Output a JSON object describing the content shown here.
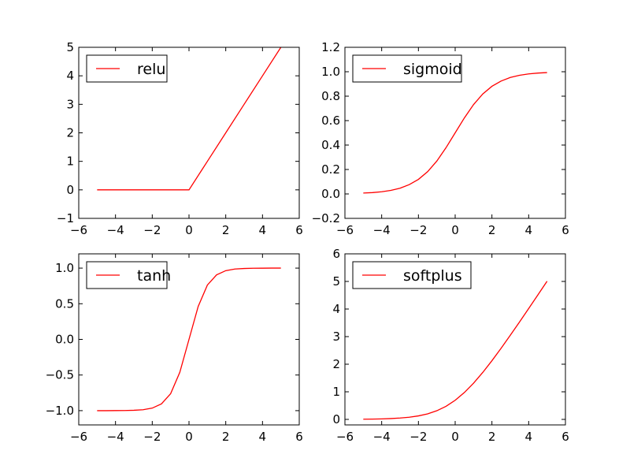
{
  "chart_data": [
    {
      "type": "line",
      "title": "",
      "xlabel": "",
      "ylabel": "",
      "xlim": [
        -6,
        6
      ],
      "ylim": [
        -1,
        5
      ],
      "xticks": [
        -6,
        -4,
        -2,
        0,
        2,
        4,
        6
      ],
      "yticks": [
        -1,
        0,
        1,
        2,
        3,
        4,
        5
      ],
      "xtick_labels": [
        "−6",
        "−4",
        "−2",
        "0",
        "2",
        "4",
        "6"
      ],
      "ytick_labels": [
        "−1",
        "0",
        "1",
        "2",
        "3",
        "4",
        "5"
      ],
      "legend_position": "upper-left",
      "grid": false,
      "series": [
        {
          "name": "relu",
          "color": "#ff0000",
          "x": [
            -5,
            -4,
            -3,
            -2,
            -1,
            0,
            1,
            2,
            3,
            4,
            5
          ],
          "y": [
            0,
            0,
            0,
            0,
            0,
            0,
            1,
            2,
            3,
            4,
            5
          ]
        }
      ]
    },
    {
      "type": "line",
      "title": "",
      "xlabel": "",
      "ylabel": "",
      "xlim": [
        -6,
        6
      ],
      "ylim": [
        -0.2,
        1.2
      ],
      "xticks": [
        -6,
        -4,
        -2,
        0,
        2,
        4,
        6
      ],
      "yticks": [
        -0.2,
        0.0,
        0.2,
        0.4,
        0.6,
        0.8,
        1.0,
        1.2
      ],
      "xtick_labels": [
        "−6",
        "−4",
        "−2",
        "0",
        "2",
        "4",
        "6"
      ],
      "ytick_labels": [
        "−0.2",
        "0.0",
        "0.2",
        "0.4",
        "0.6",
        "0.8",
        "1.0",
        "1.2"
      ],
      "legend_position": "upper-left",
      "grid": false,
      "series": [
        {
          "name": "sigmoid",
          "color": "#ff0000",
          "x": [
            -5,
            -4.5,
            -4,
            -3.5,
            -3,
            -2.5,
            -2,
            -1.5,
            -1,
            -0.5,
            0,
            0.5,
            1,
            1.5,
            2,
            2.5,
            3,
            3.5,
            4,
            4.5,
            5
          ],
          "y": [
            0.007,
            0.011,
            0.018,
            0.029,
            0.047,
            0.076,
            0.119,
            0.182,
            0.269,
            0.378,
            0.5,
            0.622,
            0.731,
            0.818,
            0.881,
            0.924,
            0.953,
            0.971,
            0.982,
            0.989,
            0.993
          ]
        }
      ]
    },
    {
      "type": "line",
      "title": "",
      "xlabel": "",
      "ylabel": "",
      "xlim": [
        -6,
        6
      ],
      "ylim": [
        -1.2,
        1.2
      ],
      "xticks": [
        -6,
        -4,
        -2,
        0,
        2,
        4,
        6
      ],
      "yticks": [
        -1.0,
        -0.5,
        0.0,
        0.5,
        1.0
      ],
      "xtick_labels": [
        "−6",
        "−4",
        "−2",
        "0",
        "2",
        "4",
        "6"
      ],
      "ytick_labels": [
        "−1.0",
        "−0.5",
        "0.0",
        "0.5",
        "1.0"
      ],
      "legend_position": "upper-left",
      "grid": false,
      "series": [
        {
          "name": "tanh",
          "color": "#ff0000",
          "x": [
            -5,
            -4.5,
            -4,
            -3.5,
            -3,
            -2.5,
            -2,
            -1.5,
            -1,
            -0.5,
            0,
            0.5,
            1,
            1.5,
            2,
            2.5,
            3,
            3.5,
            4,
            4.5,
            5
          ],
          "y": [
            -1.0,
            -1.0,
            -0.999,
            -0.998,
            -0.995,
            -0.987,
            -0.964,
            -0.905,
            -0.762,
            -0.462,
            0.0,
            0.462,
            0.762,
            0.905,
            0.964,
            0.987,
            0.995,
            0.998,
            0.999,
            1.0,
            1.0
          ]
        }
      ]
    },
    {
      "type": "line",
      "title": "",
      "xlabel": "",
      "ylabel": "",
      "xlim": [
        -6,
        6
      ],
      "ylim": [
        -0.2,
        6
      ],
      "xticks": [
        -6,
        -4,
        -2,
        0,
        2,
        4,
        6
      ],
      "yticks": [
        0,
        1,
        2,
        3,
        4,
        5,
        6
      ],
      "xtick_labels": [
        "−6",
        "−4",
        "−2",
        "0",
        "2",
        "4",
        "6"
      ],
      "ytick_labels": [
        "0",
        "1",
        "2",
        "3",
        "4",
        "5",
        "6"
      ],
      "legend_position": "upper-left",
      "grid": false,
      "series": [
        {
          "name": "softplus",
          "color": "#ff0000",
          "x": [
            -5,
            -4.5,
            -4,
            -3.5,
            -3,
            -2.5,
            -2,
            -1.5,
            -1,
            -0.5,
            0,
            0.5,
            1,
            1.5,
            2,
            2.5,
            3,
            3.5,
            4,
            4.5,
            5
          ],
          "y": [
            0.007,
            0.011,
            0.018,
            0.03,
            0.049,
            0.079,
            0.127,
            0.201,
            0.313,
            0.474,
            0.693,
            0.974,
            1.313,
            1.701,
            2.127,
            2.579,
            3.049,
            3.53,
            4.018,
            4.511,
            5.007
          ]
        }
      ]
    }
  ]
}
